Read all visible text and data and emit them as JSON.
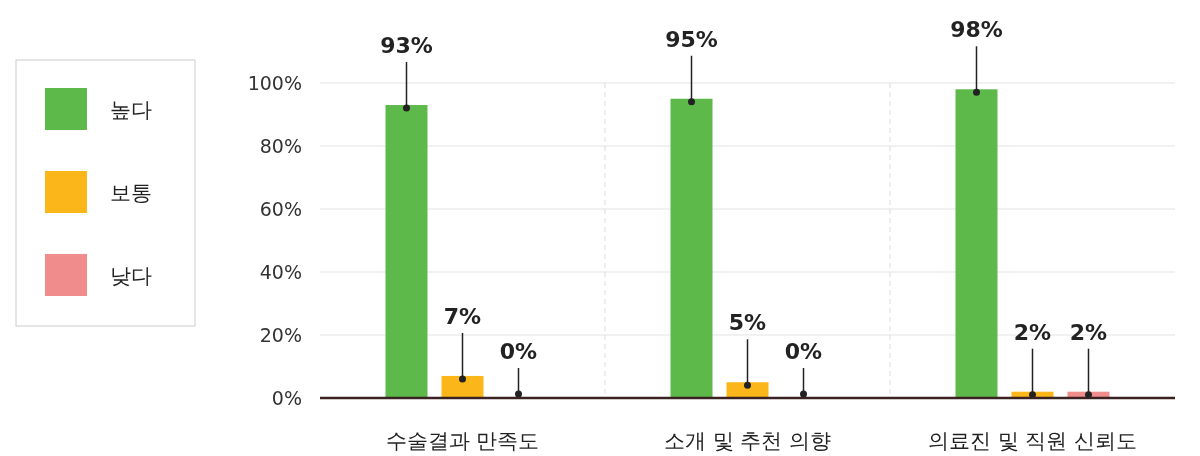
{
  "chart_data": {
    "type": "bar",
    "categories": [
      "수술결과 만족도",
      "소개 및 추천 의향",
      "의료진 및 직원 신뢰도"
    ],
    "series": [
      {
        "name": "높다",
        "color": "#5cb94a",
        "values": [
          93,
          95,
          98
        ],
        "value_labels": [
          "93%",
          "95%",
          "98%"
        ]
      },
      {
        "name": "보통",
        "color": "#fbb719",
        "values": [
          7,
          5,
          2
        ],
        "value_labels": [
          "7%",
          "5%",
          "2%"
        ]
      },
      {
        "name": "낮다",
        "color": "#f08c8c",
        "values": [
          0,
          0,
          2
        ],
        "value_labels": [
          "0%",
          "0%",
          "2%"
        ]
      }
    ],
    "ylim": [
      0,
      100
    ],
    "yticks": [
      {
        "value": 0,
        "label": "0%"
      },
      {
        "value": 20,
        "label": "20%"
      },
      {
        "value": 40,
        "label": "40%"
      },
      {
        "value": 60,
        "label": "60%"
      },
      {
        "value": 80,
        "label": "80%"
      },
      {
        "value": 100,
        "label": "100%"
      }
    ],
    "grid": "y",
    "legend": "left"
  }
}
